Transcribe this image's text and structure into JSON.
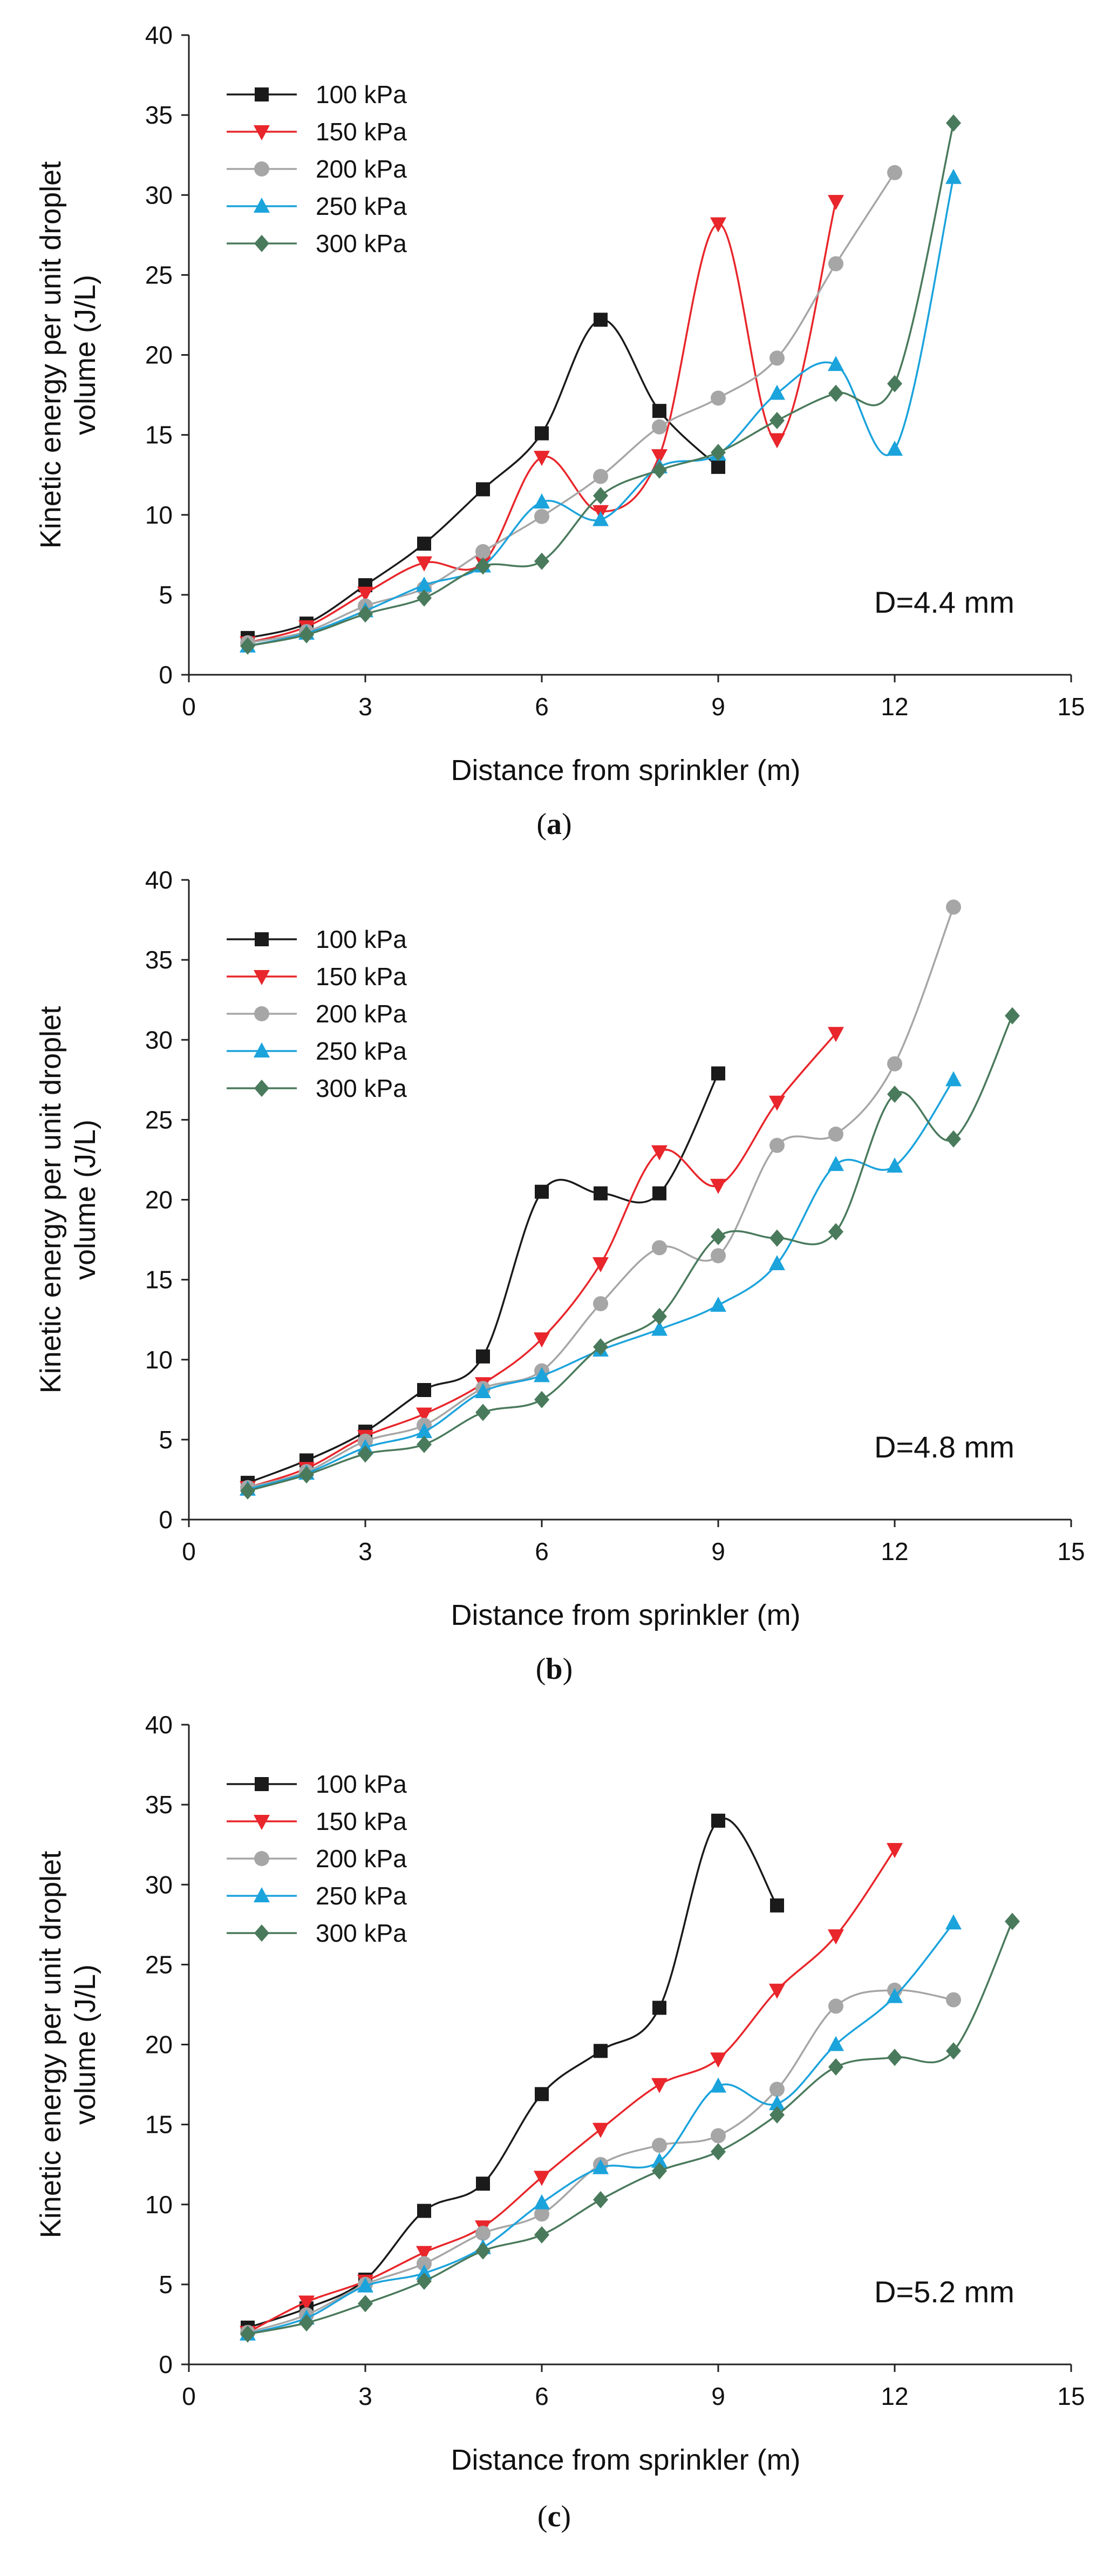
{
  "figure": {
    "captions": [
      "a",
      "b",
      "c"
    ]
  },
  "chart_data": [
    {
      "type": "line",
      "title": "",
      "xlabel": "Distance from sprinkler (m)",
      "ylabel_lines": [
        "Kinetic energy per unit droplet",
        "volume (J/L)"
      ],
      "xlim": [
        0,
        15
      ],
      "ylim": [
        0,
        40
      ],
      "xticks": [
        "0",
        "3",
        "6",
        "9",
        "12",
        "15"
      ],
      "yticks": [
        "0",
        "5",
        "10",
        "15",
        "20",
        "25",
        "30",
        "35",
        "40"
      ],
      "annotation": "D=4.4 mm",
      "legend_position": "top-left",
      "series": [
        {
          "name": "100 kPa",
          "color": "#1a1a1a",
          "marker": "square",
          "x": [
            1,
            2,
            3,
            4,
            5,
            6,
            7,
            8,
            9
          ],
          "y": [
            2.3,
            3.2,
            5.6,
            8.2,
            11.6,
            15.1,
            22.2,
            16.5,
            13.0
          ]
        },
        {
          "name": "150 kPa",
          "color": "#e8262b",
          "marker": "triangle-down",
          "x": [
            1,
            2,
            3,
            4,
            5,
            6,
            7,
            8,
            9,
            10,
            11
          ],
          "y": [
            2.0,
            3.0,
            5.1,
            7.0,
            7.0,
            13.6,
            10.2,
            13.7,
            28.2,
            14.7,
            29.6
          ]
        },
        {
          "name": "200 kPa",
          "color": "#a6a6a6",
          "marker": "circle",
          "x": [
            1,
            2,
            3,
            4,
            5,
            6,
            7,
            8,
            9,
            10,
            11,
            12
          ],
          "y": [
            2.0,
            2.7,
            4.3,
            5.4,
            7.7,
            9.9,
            12.4,
            15.5,
            17.3,
            19.8,
            25.7,
            31.4
          ]
        },
        {
          "name": "250 kPa",
          "color": "#1ba3dc",
          "marker": "triangle-up",
          "x": [
            1,
            2,
            3,
            4,
            5,
            6,
            7,
            8,
            9,
            10,
            11,
            12,
            13
          ],
          "y": [
            1.8,
            2.6,
            4.0,
            5.6,
            6.8,
            10.8,
            9.7,
            13.0,
            13.8,
            17.6,
            19.4,
            14.1,
            31.1
          ]
        },
        {
          "name": "300 kPa",
          "color": "#4a7a5c",
          "marker": "diamond",
          "x": [
            1,
            2,
            3,
            4,
            5,
            6,
            7,
            8,
            9,
            10,
            11,
            12,
            13
          ],
          "y": [
            1.8,
            2.5,
            3.8,
            4.8,
            6.8,
            7.1,
            11.2,
            12.8,
            13.9,
            15.9,
            17.6,
            18.2,
            34.5
          ]
        }
      ]
    },
    {
      "type": "line",
      "title": "",
      "xlabel": "Distance from sprinkler (m)",
      "ylabel_lines": [
        "Kinetic energy per unit droplet",
        "volume (J/L)"
      ],
      "xlim": [
        0,
        15
      ],
      "ylim": [
        0,
        40
      ],
      "xticks": [
        "0",
        "3",
        "6",
        "9",
        "12",
        "15"
      ],
      "yticks": [
        "0",
        "5",
        "10",
        "15",
        "20",
        "25",
        "30",
        "35",
        "40"
      ],
      "annotation": "D=4.8 mm",
      "legend_position": "top-left",
      "series": [
        {
          "name": "100 kPa",
          "color": "#1a1a1a",
          "marker": "square",
          "x": [
            1,
            2,
            3,
            4,
            5,
            6,
            7,
            8,
            9
          ],
          "y": [
            2.3,
            3.7,
            5.5,
            8.1,
            10.2,
            20.5,
            20.4,
            20.4,
            27.9
          ]
        },
        {
          "name": "150 kPa",
          "color": "#e8262b",
          "marker": "triangle-down",
          "x": [
            1,
            2,
            3,
            4,
            5,
            6,
            7,
            8,
            9,
            10,
            11
          ],
          "y": [
            2.0,
            3.2,
            5.2,
            6.6,
            8.5,
            11.3,
            16.0,
            23.0,
            20.9,
            26.1,
            30.4
          ]
        },
        {
          "name": "200 kPa",
          "color": "#a6a6a6",
          "marker": "circle",
          "x": [
            1,
            2,
            3,
            4,
            5,
            6,
            7,
            8,
            9,
            10,
            11,
            12,
            13
          ],
          "y": [
            2.0,
            3.0,
            4.9,
            5.9,
            8.2,
            9.3,
            13.5,
            17.0,
            16.5,
            23.4,
            24.1,
            28.5,
            38.3
          ]
        },
        {
          "name": "250 kPa",
          "color": "#1ba3dc",
          "marker": "triangle-up",
          "x": [
            1,
            2,
            3,
            4,
            5,
            6,
            7,
            8,
            9,
            10,
            11,
            12,
            13
          ],
          "y": [
            1.9,
            2.9,
            4.5,
            5.5,
            8.0,
            9.0,
            10.6,
            11.9,
            13.4,
            16.0,
            22.2,
            22.1,
            27.5
          ]
        },
        {
          "name": "300 kPa",
          "color": "#4a7a5c",
          "marker": "diamond",
          "x": [
            1,
            2,
            3,
            4,
            5,
            6,
            7,
            8,
            9,
            10,
            11,
            12,
            13,
            14
          ],
          "y": [
            1.8,
            2.8,
            4.1,
            4.7,
            6.7,
            7.5,
            10.8,
            12.7,
            17.7,
            17.6,
            18.0,
            26.6,
            23.8,
            31.5
          ]
        }
      ]
    },
    {
      "type": "line",
      "title": "",
      "xlabel": "Distance from sprinkler (m)",
      "ylabel_lines": [
        "Kinetic energy per unit droplet",
        "volume (J/L)"
      ],
      "xlim": [
        0,
        15
      ],
      "ylim": [
        0,
        40
      ],
      "xticks": [
        "0",
        "3",
        "6",
        "9",
        "12",
        "15"
      ],
      "yticks": [
        "0",
        "5",
        "10",
        "15",
        "20",
        "25",
        "30",
        "35",
        "40"
      ],
      "annotation": "D=5.2 mm",
      "legend_position": "top-left",
      "series": [
        {
          "name": "100 kPa",
          "color": "#1a1a1a",
          "marker": "square",
          "x": [
            1,
            2,
            3,
            4,
            5,
            6,
            7,
            8,
            9,
            10
          ],
          "y": [
            2.3,
            3.5,
            5.3,
            9.6,
            11.3,
            16.9,
            19.6,
            22.3,
            34.0,
            28.7
          ]
        },
        {
          "name": "150 kPa",
          "color": "#e8262b",
          "marker": "triangle-down",
          "x": [
            1,
            2,
            3,
            4,
            5,
            6,
            7,
            8,
            9,
            10,
            11,
            12
          ],
          "y": [
            2.0,
            3.9,
            5.2,
            7.0,
            8.6,
            11.7,
            14.7,
            17.5,
            19.1,
            23.4,
            26.8,
            32.2
          ]
        },
        {
          "name": "200 kPa",
          "color": "#a6a6a6",
          "marker": "circle",
          "x": [
            1,
            2,
            3,
            4,
            5,
            6,
            7,
            8,
            9,
            10,
            11,
            12,
            13
          ],
          "y": [
            2.0,
            3.1,
            5.0,
            6.3,
            8.2,
            9.4,
            12.5,
            13.7,
            14.3,
            17.2,
            22.4,
            23.4,
            22.8
          ]
        },
        {
          "name": "250 kPa",
          "color": "#1ba3dc",
          "marker": "triangle-up",
          "x": [
            1,
            2,
            3,
            4,
            5,
            6,
            7,
            8,
            9,
            10,
            11,
            12,
            13
          ],
          "y": [
            1.9,
            2.9,
            4.9,
            5.7,
            7.3,
            10.1,
            12.3,
            12.7,
            17.4,
            16.3,
            20.0,
            23.0,
            27.6
          ]
        },
        {
          "name": "300 kPa",
          "color": "#4a7a5c",
          "marker": "diamond",
          "x": [
            1,
            2,
            3,
            4,
            5,
            6,
            7,
            8,
            9,
            10,
            11,
            12,
            13,
            14
          ],
          "y": [
            1.9,
            2.6,
            3.8,
            5.2,
            7.1,
            8.1,
            10.3,
            12.1,
            13.3,
            15.6,
            18.6,
            19.2,
            19.6,
            27.7
          ]
        }
      ]
    }
  ]
}
